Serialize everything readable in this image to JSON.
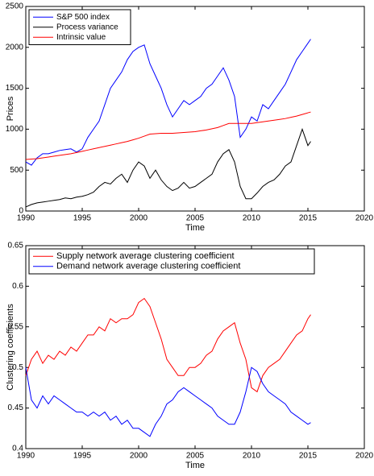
{
  "chart_data": [
    {
      "type": "line",
      "xlabel": "Time",
      "ylabel": "Prices",
      "x": [
        1990,
        1990.5,
        1991,
        1991.5,
        1992,
        1992.5,
        1993,
        1993.5,
        1994,
        1994.5,
        1995,
        1995.5,
        1996,
        1996.5,
        1997,
        1997.5,
        1998,
        1998.5,
        1999,
        1999.5,
        2000,
        2000.5,
        2001,
        2001.5,
        2002,
        2002.5,
        2003,
        2003.5,
        2004,
        2004.5,
        2005,
        2005.5,
        2006,
        2006.5,
        2007,
        2007.5,
        2008,
        2008.5,
        2009,
        2009.5,
        2010,
        2010.5,
        2011,
        2011.5,
        2012,
        2012.5,
        2013,
        2013.5,
        2014,
        2014.5,
        2015,
        2015.25
      ],
      "series": [
        {
          "name": "S&P 500 index",
          "color": "#0000ff",
          "values": [
            600,
            560,
            650,
            700,
            700,
            720,
            740,
            750,
            760,
            720,
            760,
            900,
            1000,
            1100,
            1300,
            1500,
            1600,
            1700,
            1850,
            1950,
            2000,
            2030,
            1800,
            1650,
            1500,
            1300,
            1150,
            1250,
            1350,
            1300,
            1350,
            1400,
            1500,
            1550,
            1650,
            1750,
            1600,
            1400,
            900,
            1000,
            1150,
            1100,
            1300,
            1250,
            1350,
            1450,
            1550,
            1700,
            1850,
            1950,
            2050,
            2100
          ]
        },
        {
          "name": "Process variance",
          "color": "#000000",
          "values": [
            50,
            80,
            100,
            110,
            120,
            130,
            140,
            160,
            150,
            170,
            180,
            200,
            230,
            300,
            350,
            330,
            400,
            450,
            350,
            500,
            600,
            550,
            400,
            500,
            380,
            300,
            250,
            280,
            350,
            280,
            300,
            350,
            400,
            450,
            600,
            700,
            750,
            600,
            300,
            150,
            150,
            220,
            300,
            350,
            380,
            450,
            550,
            600,
            800,
            1000,
            800,
            850
          ]
        },
        {
          "name": "Intrinsic value",
          "color": "#ff0000",
          "values": [
            630,
            635,
            640,
            650,
            660,
            670,
            680,
            690,
            700,
            715,
            730,
            745,
            760,
            775,
            790,
            805,
            820,
            835,
            850,
            870,
            890,
            915,
            940,
            945,
            950,
            950,
            950,
            955,
            960,
            965,
            970,
            980,
            990,
            1005,
            1020,
            1045,
            1070,
            1070,
            1070,
            1070,
            1070,
            1080,
            1090,
            1100,
            1110,
            1120,
            1130,
            1145,
            1160,
            1180,
            1200,
            1210
          ]
        }
      ],
      "xlim": [
        1990,
        2020
      ],
      "xticks": [
        1990,
        1995,
        2000,
        2005,
        2010,
        2015,
        2020
      ],
      "ylim": [
        0,
        2500
      ],
      "yticks": [
        0,
        500,
        1000,
        1500,
        2000,
        2500
      ],
      "legend": "upper left"
    },
    {
      "type": "line",
      "xlabel": "Time",
      "ylabel": "Clustering coefficients",
      "x": [
        1990,
        1990.5,
        1991,
        1991.5,
        1992,
        1992.5,
        1993,
        1993.5,
        1994,
        1994.5,
        1995,
        1995.5,
        1996,
        1996.5,
        1997,
        1997.5,
        1998,
        1998.5,
        1999,
        1999.5,
        2000,
        2000.5,
        2001,
        2001.5,
        2002,
        2002.5,
        2003,
        2003.5,
        2004,
        2004.5,
        2005,
        2005.5,
        2006,
        2006.5,
        2007,
        2007.5,
        2008,
        2008.5,
        2009,
        2009.5,
        2010,
        2010.5,
        2011,
        2011.5,
        2012,
        2012.5,
        2013,
        2013.5,
        2014,
        2014.5,
        2015,
        2015.25
      ],
      "series": [
        {
          "name": "Supply network average clustering coefficient",
          "color": "#ff0000",
          "values": [
            0.49,
            0.51,
            0.52,
            0.505,
            0.515,
            0.51,
            0.52,
            0.515,
            0.525,
            0.52,
            0.53,
            0.54,
            0.54,
            0.55,
            0.545,
            0.56,
            0.555,
            0.56,
            0.56,
            0.565,
            0.58,
            0.585,
            0.575,
            0.555,
            0.535,
            0.51,
            0.5,
            0.49,
            0.49,
            0.5,
            0.5,
            0.505,
            0.515,
            0.52,
            0.535,
            0.545,
            0.55,
            0.555,
            0.53,
            0.51,
            0.475,
            0.47,
            0.49,
            0.5,
            0.505,
            0.51,
            0.52,
            0.53,
            0.54,
            0.545,
            0.56,
            0.565
          ]
        },
        {
          "name": "Demand network average clustering coefficient",
          "color": "#0000ff",
          "values": [
            0.5,
            0.46,
            0.45,
            0.465,
            0.455,
            0.465,
            0.46,
            0.455,
            0.45,
            0.445,
            0.445,
            0.44,
            0.445,
            0.44,
            0.445,
            0.435,
            0.44,
            0.43,
            0.435,
            0.425,
            0.425,
            0.42,
            0.415,
            0.43,
            0.44,
            0.455,
            0.46,
            0.47,
            0.475,
            0.47,
            0.465,
            0.46,
            0.455,
            0.45,
            0.44,
            0.435,
            0.43,
            0.43,
            0.445,
            0.47,
            0.5,
            0.495,
            0.48,
            0.47,
            0.465,
            0.46,
            0.455,
            0.445,
            0.44,
            0.435,
            0.43,
            0.432
          ]
        }
      ],
      "xlim": [
        1990,
        2020
      ],
      "xticks": [
        1990,
        1995,
        2000,
        2005,
        2010,
        2015,
        2020
      ],
      "ylim": [
        0.4,
        0.65
      ],
      "yticks": [
        0.4,
        0.45,
        0.5,
        0.55,
        0.6,
        0.65
      ],
      "legend": "upper left"
    }
  ]
}
